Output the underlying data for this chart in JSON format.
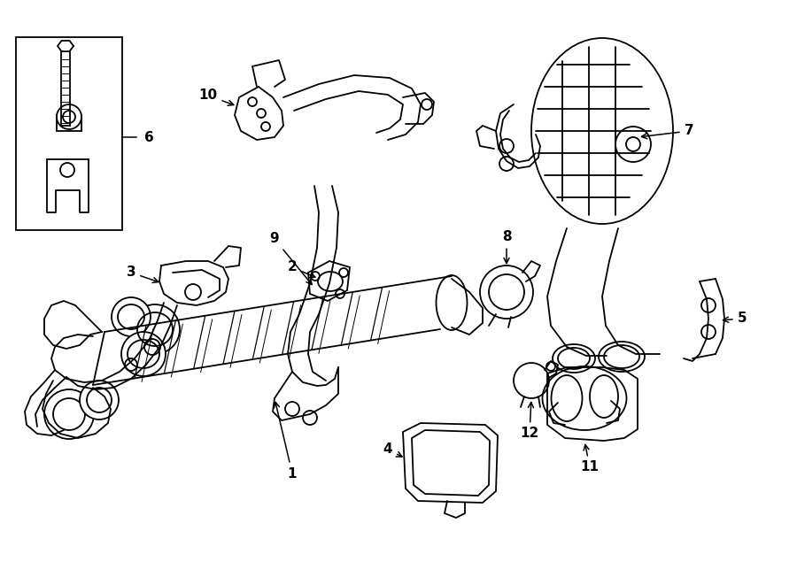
{
  "background_color": "#ffffff",
  "line_color": "#000000",
  "lw": 1.3,
  "fig_width": 9.0,
  "fig_height": 6.61,
  "dpi": 100
}
